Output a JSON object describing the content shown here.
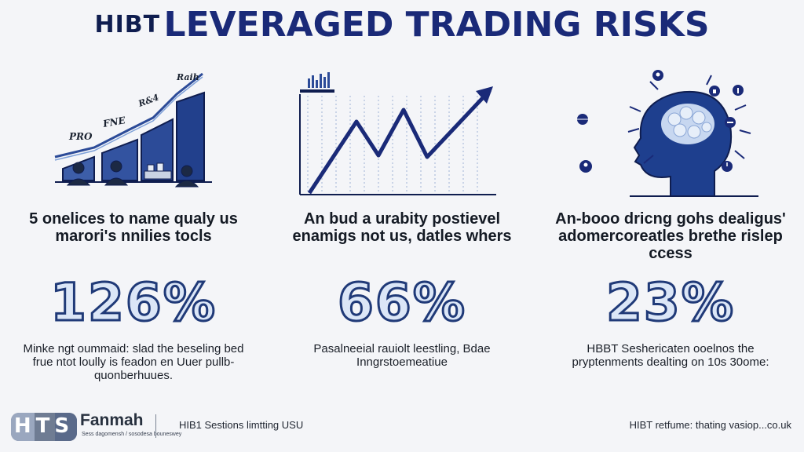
{
  "title": {
    "prefix": "HIBT",
    "main": "LEVERAGED TRADING RISKS"
  },
  "columns": [
    {
      "illustration_labels": [
        "Raih",
        "R&4",
        "FNE",
        "PRO"
      ],
      "heading": "5 onelices to name qualy us marori's nnilies tocls",
      "stat": "126%",
      "description": "Minke ngt oummaid: slad the beseling bed frue ntot loully is feadon en Uuer pullb-quonberhuues."
    },
    {
      "heading": "An bud a urabity postievel enamigs not us, datles whers",
      "stat": "66%",
      "description": "Pasalneeial rauiolt leestling, Bdae Inngrstoemeatiue"
    },
    {
      "heading": "An-booo dricng gohs dealigus' adomercoreatles brethe rislep ccess",
      "stat": "23%",
      "description": "HBBT Seshericaten ooelnos the pryptenments dealting on 10s 30ome:"
    }
  ],
  "footer": {
    "logo_text": "HTS",
    "brand": "Fanmah",
    "brand_subtitle": "Sess dagomensh / sosodesa bouneswey",
    "left_text": "HIB1 Sestions limtting USU",
    "right_text": "HIBT retfume: thating vasiop...co.uk"
  },
  "colors": {
    "accent": "#1a2a78",
    "dark_navy": "#0f1d4f",
    "stat_fill": "#dbe6f7",
    "stat_stroke": "#203a78"
  },
  "icons": [
    "bar-growth-illustration",
    "people-icon",
    "line-chart-illustration",
    "head-brain-icon",
    "location-pin-icon",
    "lightbulb-icon",
    "globe-icon",
    "info-icon",
    "minus-icon",
    "user-icon",
    "clock-icon"
  ]
}
